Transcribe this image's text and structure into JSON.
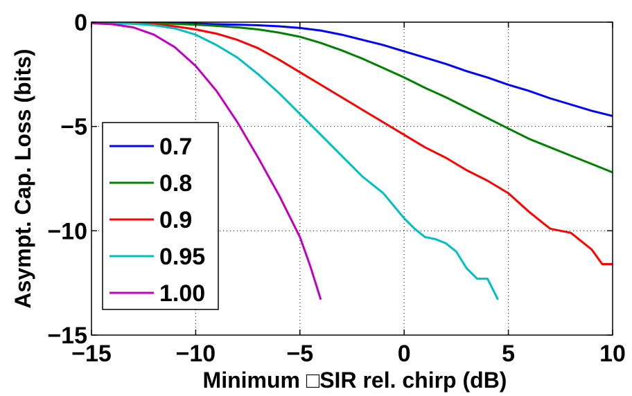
{
  "chart_data": {
    "type": "line",
    "title": "",
    "xlabel": "Minimum □SIR rel. chirp (dB)",
    "ylabel": "Asympt. Cap. Loss (bits)",
    "xlim": [
      -15,
      10
    ],
    "ylim": [
      -15,
      0
    ],
    "xticks": [
      -15,
      -10,
      -5,
      0,
      5,
      10
    ],
    "xtick_labels": [
      "−15",
      "−10",
      "−5",
      "0",
      "5",
      "10"
    ],
    "yticks": [
      0,
      -5,
      -10,
      -15
    ],
    "ytick_labels": [
      "0",
      "−5",
      "−10",
      "−15"
    ],
    "grid": true,
    "legend_position": "bottom-left",
    "colors": {
      "axis": "#000000",
      "grid": "#000000"
    },
    "series": [
      {
        "name": "0.7",
        "color": "#0000ff",
        "x": [
          -15,
          -14,
          -13,
          -12,
          -11,
          -10,
          -9,
          -8,
          -7,
          -6,
          -5,
          -4,
          -3,
          -2,
          -1,
          0,
          1,
          2,
          3,
          4,
          5,
          6,
          7,
          8,
          9,
          10
        ],
        "y": [
          -0.05,
          -0.05,
          -0.05,
          -0.05,
          -0.05,
          -0.07,
          -0.1,
          -0.12,
          -0.15,
          -0.2,
          -0.28,
          -0.4,
          -0.6,
          -0.85,
          -1.1,
          -1.4,
          -1.7,
          -2.0,
          -2.35,
          -2.65,
          -3.0,
          -3.3,
          -3.65,
          -3.95,
          -4.25,
          -4.5
        ]
      },
      {
        "name": "0.8",
        "color": "#008000",
        "x": [
          -15,
          -14,
          -13,
          -12,
          -11,
          -10,
          -9,
          -8,
          -7,
          -6,
          -5,
          -4,
          -3,
          -2,
          -1,
          0,
          1,
          2,
          3,
          4,
          5,
          6,
          7,
          8,
          9,
          10
        ],
        "y": [
          -0.05,
          -0.05,
          -0.05,
          -0.05,
          -0.08,
          -0.12,
          -0.18,
          -0.25,
          -0.35,
          -0.5,
          -0.7,
          -1.0,
          -1.35,
          -1.75,
          -2.2,
          -2.65,
          -3.15,
          -3.6,
          -4.1,
          -4.6,
          -5.1,
          -5.6,
          -6.0,
          -6.4,
          -6.8,
          -7.2
        ]
      },
      {
        "name": "0.9",
        "color": "#ff0000",
        "x": [
          -15,
          -14,
          -13,
          -12,
          -11,
          -10,
          -9,
          -8,
          -7,
          -6,
          -5,
          -4,
          -3,
          -2,
          -1,
          0,
          1,
          2,
          3,
          4,
          5,
          6,
          7,
          8,
          9,
          9.5,
          10
        ],
        "y": [
          -0.05,
          -0.05,
          -0.05,
          -0.1,
          -0.2,
          -0.35,
          -0.55,
          -0.85,
          -1.25,
          -1.8,
          -2.4,
          -3.0,
          -3.6,
          -4.2,
          -4.8,
          -5.4,
          -6.0,
          -6.5,
          -7.1,
          -7.6,
          -8.2,
          -9.1,
          -9.9,
          -10.1,
          -10.9,
          -11.6,
          -11.6
        ]
      },
      {
        "name": "0.95",
        "color": "#00bfbf",
        "x": [
          -15,
          -14,
          -13,
          -12,
          -11,
          -10,
          -9,
          -8,
          -7,
          -6,
          -5,
          -4,
          -3,
          -2,
          -1,
          0,
          0.5,
          1,
          1.5,
          2,
          2.5,
          3,
          3.5,
          4,
          4.5
        ],
        "y": [
          -0.05,
          -0.05,
          -0.08,
          -0.15,
          -0.3,
          -0.6,
          -1.1,
          -1.7,
          -2.5,
          -3.4,
          -4.4,
          -5.4,
          -6.4,
          -7.4,
          -8.2,
          -9.4,
          -9.9,
          -10.3,
          -10.4,
          -10.6,
          -11.0,
          -11.8,
          -12.3,
          -12.3,
          -13.3
        ]
      },
      {
        "name": "1.00",
        "color": "#bf00bf",
        "x": [
          -15,
          -14,
          -13,
          -12,
          -11,
          -10,
          -9,
          -8,
          -7,
          -6,
          -5,
          -4.5,
          -4
        ],
        "y": [
          -0.05,
          -0.1,
          -0.25,
          -0.6,
          -1.2,
          -2.1,
          -3.3,
          -4.8,
          -6.5,
          -8.3,
          -10.3,
          -11.7,
          -13.3
        ]
      }
    ]
  }
}
